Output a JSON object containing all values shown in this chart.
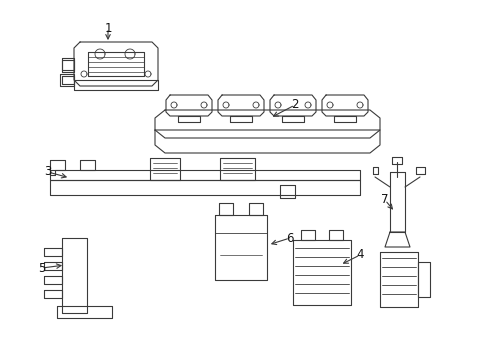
{
  "background_color": "#ffffff",
  "line_color": "#3a3a3a",
  "label_color": "#111111",
  "fig_width": 4.89,
  "fig_height": 3.6,
  "dpi": 100,
  "lw": 0.8,
  "fontsize": 8.5
}
